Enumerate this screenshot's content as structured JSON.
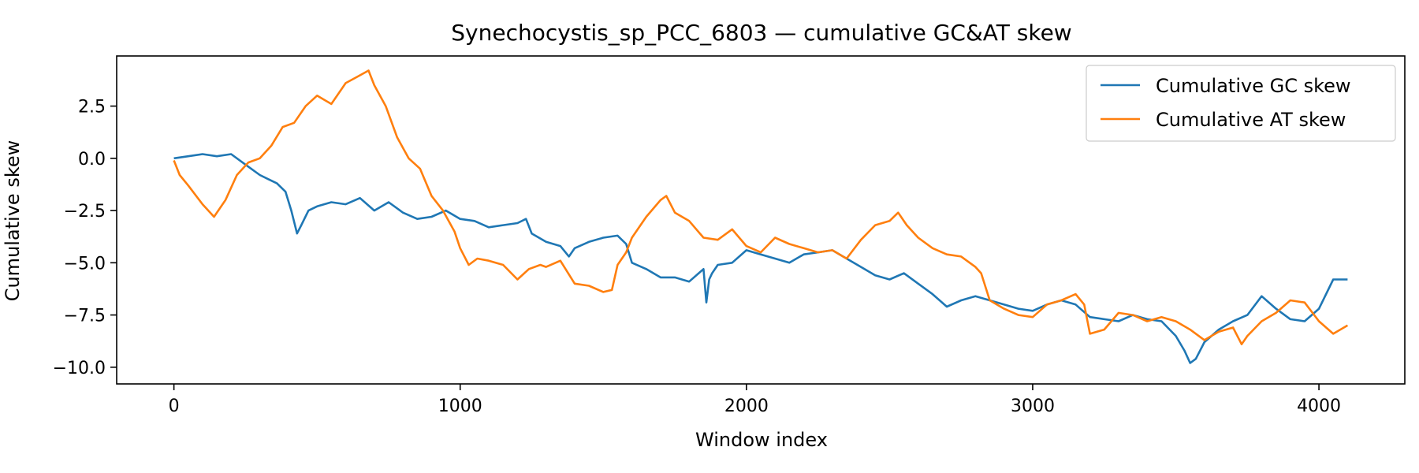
{
  "chart_data": {
    "type": "line",
    "title": "Synechocystis_sp_PCC_6803 — cumulative GC&AT skew",
    "xlabel": "Window index",
    "ylabel": "Cumulative skew",
    "xlim": [
      -200,
      4300
    ],
    "ylim": [
      -10.8,
      4.9
    ],
    "xticks": [
      0,
      1000,
      2000,
      3000,
      4000
    ],
    "xtick_labels": [
      "0",
      "1000",
      "2000",
      "3000",
      "4000"
    ],
    "yticks": [
      2.5,
      0.0,
      -2.5,
      -5.0,
      -7.5,
      -10.0
    ],
    "ytick_labels": [
      "2.5",
      "0.0",
      "−2.5",
      "−5.0",
      "−7.5",
      "−10.0"
    ],
    "grid": false,
    "legend_position": "top-right",
    "colors": {
      "gc": "#1f77b4",
      "at": "#ff7f0e"
    },
    "series": [
      {
        "name": "Cumulative GC skew",
        "color": "#1f77b4",
        "x": [
          0,
          50,
          100,
          150,
          200,
          250,
          300,
          330,
          360,
          390,
          410,
          430,
          445,
          470,
          500,
          550,
          600,
          650,
          700,
          750,
          800,
          850,
          900,
          950,
          1000,
          1050,
          1100,
          1150,
          1200,
          1230,
          1250,
          1300,
          1350,
          1380,
          1400,
          1450,
          1500,
          1550,
          1580,
          1600,
          1650,
          1700,
          1750,
          1800,
          1850,
          1860,
          1870,
          1880,
          1900,
          1950,
          2000,
          2050,
          2100,
          2150,
          2200,
          2250,
          2300,
          2350,
          2400,
          2450,
          2500,
          2550,
          2600,
          2650,
          2700,
          2750,
          2800,
          2850,
          2900,
          2950,
          3000,
          3050,
          3100,
          3150,
          3200,
          3250,
          3300,
          3350,
          3400,
          3450,
          3500,
          3530,
          3550,
          3570,
          3600,
          3650,
          3700,
          3750,
          3800,
          3850,
          3900,
          3950,
          4000,
          4050,
          4100
        ],
        "y": [
          0.0,
          0.1,
          0.2,
          0.1,
          0.2,
          -0.3,
          -0.8,
          -1.0,
          -1.2,
          -1.6,
          -2.5,
          -3.6,
          -3.2,
          -2.5,
          -2.3,
          -2.1,
          -2.2,
          -1.9,
          -2.5,
          -2.1,
          -2.6,
          -2.9,
          -2.8,
          -2.5,
          -2.9,
          -3.0,
          -3.3,
          -3.2,
          -3.1,
          -2.9,
          -3.6,
          -4.0,
          -4.2,
          -4.7,
          -4.3,
          -4.0,
          -3.8,
          -3.7,
          -4.1,
          -5.0,
          -5.3,
          -5.7,
          -5.7,
          -5.9,
          -5.3,
          -6.9,
          -5.8,
          -5.5,
          -5.1,
          -5.0,
          -4.4,
          -4.6,
          -4.8,
          -5.0,
          -4.6,
          -4.5,
          -4.4,
          -4.8,
          -5.2,
          -5.6,
          -5.8,
          -5.5,
          -6.0,
          -6.5,
          -7.1,
          -6.8,
          -6.6,
          -6.8,
          -7.0,
          -7.2,
          -7.3,
          -7.0,
          -6.8,
          -7.0,
          -7.6,
          -7.7,
          -7.8,
          -7.5,
          -7.7,
          -7.8,
          -8.5,
          -9.2,
          -9.8,
          -9.6,
          -8.8,
          -8.2,
          -7.8,
          -7.5,
          -6.6,
          -7.2,
          -7.7,
          -7.8,
          -7.2,
          -5.8,
          -5.8
        ]
      },
      {
        "name": "Cumulative AT skew",
        "color": "#ff7f0e",
        "x": [
          0,
          20,
          50,
          100,
          140,
          180,
          220,
          260,
          300,
          340,
          380,
          420,
          460,
          500,
          550,
          600,
          640,
          680,
          700,
          740,
          780,
          820,
          860,
          900,
          940,
          980,
          1000,
          1030,
          1060,
          1100,
          1150,
          1200,
          1240,
          1280,
          1300,
          1350,
          1400,
          1450,
          1500,
          1530,
          1550,
          1580,
          1600,
          1650,
          1700,
          1720,
          1750,
          1800,
          1850,
          1900,
          1950,
          2000,
          2050,
          2100,
          2150,
          2200,
          2250,
          2300,
          2350,
          2400,
          2450,
          2500,
          2530,
          2560,
          2600,
          2650,
          2700,
          2750,
          2800,
          2820,
          2850,
          2900,
          2950,
          3000,
          3050,
          3100,
          3150,
          3180,
          3200,
          3250,
          3300,
          3350,
          3400,
          3450,
          3500,
          3550,
          3600,
          3650,
          3700,
          3730,
          3750,
          3800,
          3850,
          3900,
          3950,
          4000,
          4050,
          4100
        ],
        "y": [
          -0.1,
          -0.8,
          -1.3,
          -2.2,
          -2.8,
          -2.0,
          -0.8,
          -0.2,
          0.0,
          0.6,
          1.5,
          1.7,
          2.5,
          3.0,
          2.6,
          3.6,
          3.9,
          4.2,
          3.5,
          2.5,
          1.0,
          0.0,
          -0.5,
          -1.8,
          -2.5,
          -3.5,
          -4.3,
          -5.1,
          -4.8,
          -4.9,
          -5.1,
          -5.8,
          -5.3,
          -5.1,
          -5.2,
          -4.9,
          -6.0,
          -6.1,
          -6.4,
          -6.3,
          -5.1,
          -4.5,
          -3.8,
          -2.8,
          -2.0,
          -1.8,
          -2.6,
          -3.0,
          -3.8,
          -3.9,
          -3.4,
          -4.2,
          -4.5,
          -3.8,
          -4.1,
          -4.3,
          -4.5,
          -4.4,
          -4.8,
          -3.9,
          -3.2,
          -3.0,
          -2.6,
          -3.2,
          -3.8,
          -4.3,
          -4.6,
          -4.7,
          -5.2,
          -5.5,
          -6.8,
          -7.2,
          -7.5,
          -7.6,
          -7.0,
          -6.8,
          -6.5,
          -7.0,
          -8.4,
          -8.2,
          -7.4,
          -7.5,
          -7.8,
          -7.6,
          -7.8,
          -8.2,
          -8.7,
          -8.3,
          -8.1,
          -8.9,
          -8.5,
          -7.8,
          -7.4,
          -6.8,
          -6.9,
          -7.8,
          -8.4,
          -8.0
        ]
      }
    ]
  }
}
